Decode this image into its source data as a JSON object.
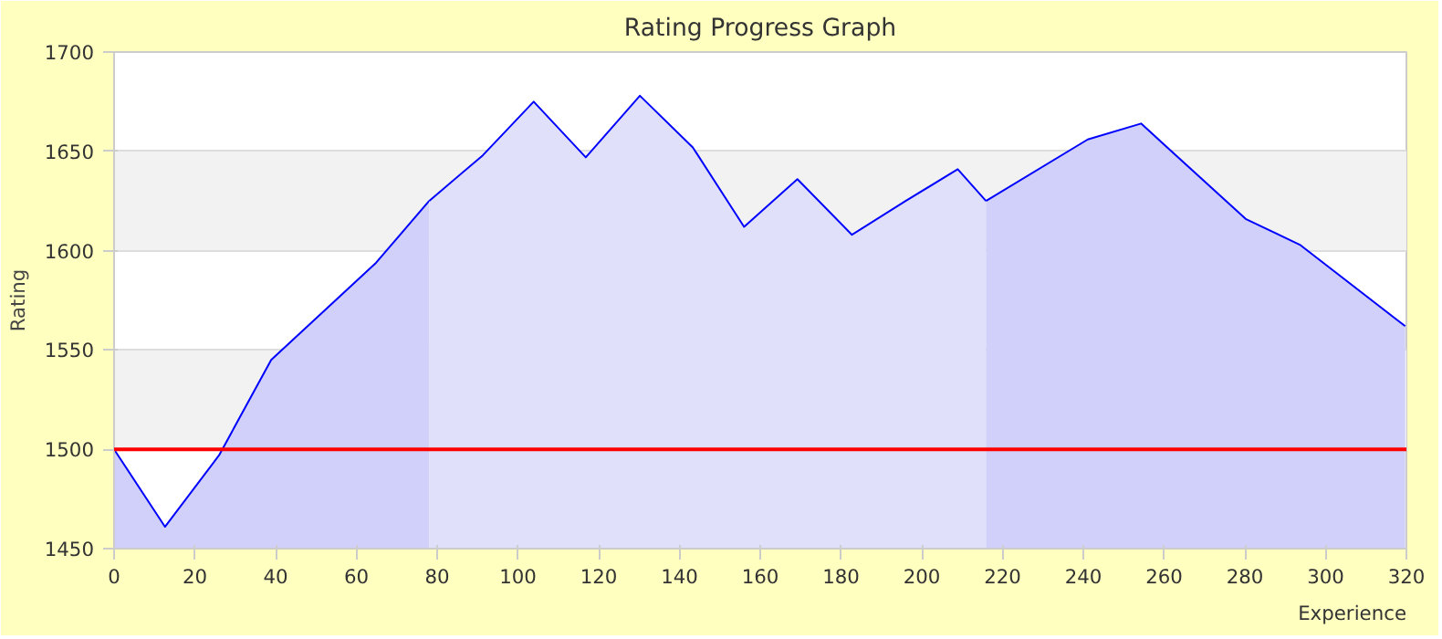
{
  "chart_data": {
    "type": "area",
    "title": "Rating Progress Graph",
    "xlabel": "Experience",
    "ylabel": "Rating",
    "xlim": [
      0,
      320
    ],
    "ylim": [
      1450,
      1700
    ],
    "xticks": [
      0,
      20,
      40,
      60,
      80,
      100,
      120,
      140,
      160,
      180,
      200,
      220,
      240,
      260,
      280,
      300,
      320
    ],
    "yticks": [
      1450,
      1500,
      1550,
      1600,
      1650,
      1700
    ],
    "grid": "y",
    "marker": "none",
    "line_style": "solid",
    "ref_lines": [
      {
        "axis": "y",
        "value": 1500,
        "label": null,
        "color": "#ff0000"
      }
    ],
    "series": [
      {
        "color": "#d0d0fa",
        "x": [
          0,
          12.6,
          26,
          38.9,
          64.9,
          78
        ],
        "values": [
          1500,
          1461,
          1497,
          1545,
          1594,
          1625
        ]
      },
      {
        "color": "#e0e0fa",
        "x": [
          78,
          91.3,
          103.9,
          116.8,
          130.2,
          143.3,
          156,
          169.2,
          182.7,
          196,
          208.9,
          215.9
        ],
        "values": [
          1625,
          1648,
          1675,
          1647,
          1678,
          1652,
          1612,
          1636,
          1608,
          1625,
          1641,
          1625
        ]
      },
      {
        "color": "#d0d0fa",
        "x": [
          215.9,
          241.1,
          254.3,
          280.2,
          293.6,
          319.7
        ],
        "values": [
          1625,
          1656,
          1664,
          1616,
          1603,
          1562
        ]
      }
    ]
  }
}
